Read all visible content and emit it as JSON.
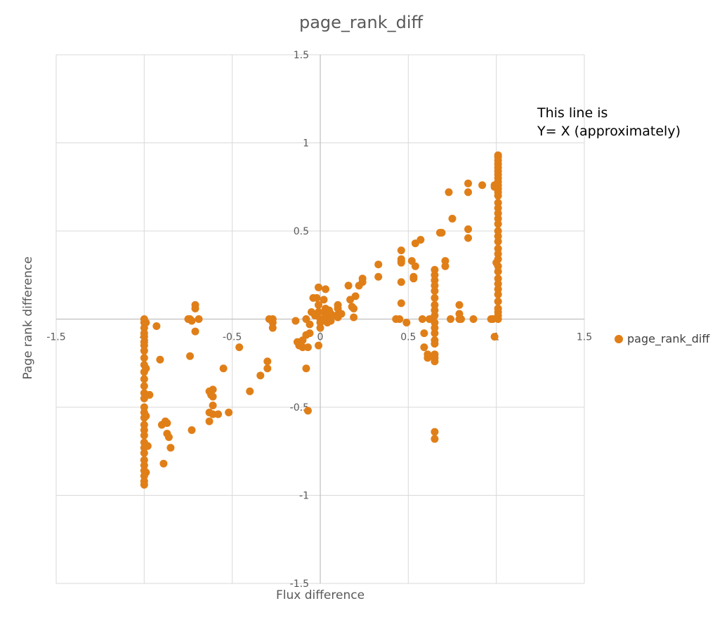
{
  "chart_data": {
    "type": "scatter",
    "title": "page_rank_diff",
    "xlabel": "Flux difference",
    "ylabel": "Page rank difference",
    "xlim": [
      -1.5,
      1.5
    ],
    "ylim": [
      -1.5,
      1.5
    ],
    "xticks": [
      -1.5,
      -1,
      -0.5,
      0,
      0.5,
      1,
      1.5
    ],
    "yticks": [
      -1.5,
      -1,
      -0.5,
      0,
      0.5,
      1,
      1.5
    ],
    "xtick_labels": [
      "-1.5",
      "-1",
      "-0.5",
      "0",
      "0.5",
      "1",
      "1.5"
    ],
    "ytick_labels": [
      "-1.5",
      "-1",
      "-0.5",
      "0",
      "0.5",
      "1",
      "1.5"
    ],
    "grid": true,
    "legend_position": "right",
    "annotation": [
      "This line is",
      "Y= X (approximately)"
    ],
    "series": [
      {
        "name": "page_rank_diff",
        "color": "#E07F18",
        "points": [
          [
            -1,
            0
          ],
          [
            -1,
            -0.02
          ],
          [
            -1,
            -0.05
          ],
          [
            -1,
            -0.08
          ],
          [
            -1,
            -0.1
          ],
          [
            -1,
            -0.13
          ],
          [
            -1,
            -0.15
          ],
          [
            -1,
            -0.18
          ],
          [
            -1,
            -0.22
          ],
          [
            -1,
            -0.26
          ],
          [
            -1,
            -0.3
          ],
          [
            -1,
            -0.34
          ],
          [
            -1,
            -0.38
          ],
          [
            -1,
            -0.42
          ],
          [
            -1,
            -0.45
          ],
          [
            -1,
            -0.5
          ],
          [
            -1,
            -0.53
          ],
          [
            -1,
            -0.56
          ],
          [
            -1,
            -0.6
          ],
          [
            -1,
            -0.63
          ],
          [
            -1,
            -0.66
          ],
          [
            -1,
            -0.7
          ],
          [
            -1,
            -0.73
          ],
          [
            -1,
            -0.76
          ],
          [
            -1,
            -0.8
          ],
          [
            -1,
            -0.83
          ],
          [
            -1,
            -0.86
          ],
          [
            -1,
            -0.89
          ],
          [
            -1,
            -0.92
          ],
          [
            -1,
            -0.94
          ],
          [
            -0.99,
            -0.02
          ],
          [
            -0.99,
            -0.28
          ],
          [
            -0.99,
            -0.55
          ],
          [
            -0.99,
            -0.87
          ],
          [
            -0.97,
            -0.43
          ],
          [
            -0.98,
            -0.72
          ],
          [
            -0.93,
            -0.04
          ],
          [
            -0.91,
            -0.23
          ],
          [
            -0.9,
            -0.6
          ],
          [
            -0.89,
            -0.82
          ],
          [
            -0.88,
            -0.58
          ],
          [
            -0.87,
            -0.59
          ],
          [
            -0.87,
            -0.65
          ],
          [
            -0.86,
            -0.67
          ],
          [
            -0.85,
            -0.73
          ],
          [
            -0.75,
            0
          ],
          [
            -0.74,
            0
          ],
          [
            -0.73,
            -0.01
          ],
          [
            -0.71,
            0.08
          ],
          [
            -0.71,
            0.06
          ],
          [
            -0.71,
            -0.07
          ],
          [
            -0.69,
            0
          ],
          [
            -0.74,
            -0.21
          ],
          [
            -0.73,
            -0.63
          ],
          [
            -0.63,
            -0.41
          ],
          [
            -0.62,
            -0.43
          ],
          [
            -0.61,
            -0.4
          ],
          [
            -0.61,
            -0.44
          ],
          [
            -0.61,
            -0.49
          ],
          [
            -0.61,
            -0.54
          ],
          [
            -0.63,
            -0.53
          ],
          [
            -0.63,
            -0.58
          ],
          [
            -0.58,
            -0.54
          ],
          [
            -0.55,
            -0.28
          ],
          [
            -0.52,
            -0.53
          ],
          [
            -0.46,
            -0.16
          ],
          [
            -0.4,
            -0.41
          ],
          [
            -0.34,
            -0.32
          ],
          [
            -0.3,
            -0.28
          ],
          [
            -0.3,
            -0.24
          ],
          [
            -0.29,
            0
          ],
          [
            -0.27,
            0
          ],
          [
            -0.27,
            -0.02
          ],
          [
            -0.27,
            -0.05
          ],
          [
            -0.14,
            -0.01
          ],
          [
            -0.13,
            -0.13
          ],
          [
            -0.12,
            -0.15
          ],
          [
            -0.1,
            -0.16
          ],
          [
            -0.1,
            -0.12
          ],
          [
            -0.08,
            -0.28
          ],
          [
            -0.08,
            -0.09
          ],
          [
            -0.08,
            0
          ],
          [
            -0.07,
            -0.52
          ],
          [
            -0.07,
            -0.16
          ],
          [
            -0.06,
            -0.03
          ],
          [
            -0.06,
            -0.08
          ],
          [
            -0.05,
            0.04
          ],
          [
            -0.04,
            0.12
          ],
          [
            -0.03,
            0.02
          ],
          [
            -0.02,
            0.12
          ],
          [
            -0.01,
            -0.15
          ],
          [
            -0.01,
            0.08
          ],
          [
            -0.01,
            0.04
          ],
          [
            -0.01,
            0.18
          ],
          [
            0,
            0
          ],
          [
            0,
            -0.02
          ],
          [
            0,
            -0.05
          ],
          [
            0.02,
            0.11
          ],
          [
            0.02,
            0.04
          ],
          [
            0.03,
            0.17
          ],
          [
            0.03,
            0.06
          ],
          [
            0.03,
            0.01
          ],
          [
            0.04,
            -0.02
          ],
          [
            0.05,
            0.05
          ],
          [
            0.06,
            0.03
          ],
          [
            0.06,
            -0.01
          ],
          [
            0.09,
            0.02
          ],
          [
            0.1,
            0.06
          ],
          [
            0.1,
            0.08
          ],
          [
            0.1,
            0.01
          ],
          [
            0.12,
            0.03
          ],
          [
            0.16,
            0.19
          ],
          [
            0.17,
            0.11
          ],
          [
            0.18,
            0.07
          ],
          [
            0.19,
            0.06
          ],
          [
            0.19,
            0.01
          ],
          [
            0.2,
            0.13
          ],
          [
            0.22,
            0.19
          ],
          [
            0.24,
            0.21
          ],
          [
            0.24,
            0.23
          ],
          [
            0.33,
            0.31
          ],
          [
            0.33,
            0.24
          ],
          [
            0.43,
            0
          ],
          [
            0.45,
            0
          ],
          [
            0.46,
            0.39
          ],
          [
            0.46,
            0.34
          ],
          [
            0.46,
            0.33
          ],
          [
            0.46,
            0.32
          ],
          [
            0.46,
            0.21
          ],
          [
            0.46,
            0.09
          ],
          [
            0.49,
            -0.02
          ],
          [
            0.52,
            0.33
          ],
          [
            0.53,
            0.24
          ],
          [
            0.53,
            0.23
          ],
          [
            0.54,
            0.3
          ],
          [
            0.54,
            0.43
          ],
          [
            0.57,
            0.45
          ],
          [
            0.58,
            0
          ],
          [
            0.59,
            -0.08
          ],
          [
            0.59,
            -0.16
          ],
          [
            0.62,
            0
          ],
          [
            0.65,
            0.28
          ],
          [
            0.65,
            0.25
          ],
          [
            0.65,
            0.22
          ],
          [
            0.65,
            0.19
          ],
          [
            0.65,
            0.16
          ],
          [
            0.65,
            0.12
          ],
          [
            0.65,
            0.08
          ],
          [
            0.65,
            0.05
          ],
          [
            0.65,
            0.02
          ],
          [
            0.65,
            -0.02
          ],
          [
            0.65,
            -0.05
          ],
          [
            0.65,
            -0.08
          ],
          [
            0.65,
            -0.12
          ],
          [
            0.65,
            -0.14
          ],
          [
            0.65,
            -0.2
          ],
          [
            0.65,
            -0.22
          ],
          [
            0.65,
            -0.24
          ],
          [
            0.65,
            -0.64
          ],
          [
            0.65,
            -0.68
          ],
          [
            0.61,
            -0.2
          ],
          [
            0.61,
            -0.22
          ],
          [
            0.68,
            0.49
          ],
          [
            0.69,
            0.49
          ],
          [
            0.71,
            0.3
          ],
          [
            0.71,
            0.33
          ],
          [
            0.73,
            0.72
          ],
          [
            0.74,
            0
          ],
          [
            0.75,
            0.57
          ],
          [
            0.79,
            0.08
          ],
          [
            0.79,
            0.03
          ],
          [
            0.79,
            0
          ],
          [
            0.8,
            0
          ],
          [
            0.84,
            0.77
          ],
          [
            0.84,
            0.72
          ],
          [
            0.84,
            0.51
          ],
          [
            0.84,
            0.46
          ],
          [
            0.87,
            0
          ],
          [
            0.92,
            0.76
          ],
          [
            0.97,
            0
          ],
          [
            0.98,
            0
          ],
          [
            0.99,
            0.76
          ],
          [
            0.99,
            0.75
          ],
          [
            0.99,
            -0.1
          ],
          [
            1,
            0.32
          ],
          [
            1.01,
            0.93
          ],
          [
            1.01,
            0.92
          ],
          [
            1.01,
            0.9
          ],
          [
            1.01,
            0.88
          ],
          [
            1.01,
            0.86
          ],
          [
            1.01,
            0.84
          ],
          [
            1.01,
            0.82
          ],
          [
            1.01,
            0.8
          ],
          [
            1.01,
            0.78
          ],
          [
            1.01,
            0.76
          ],
          [
            1.01,
            0.74
          ],
          [
            1.01,
            0.72
          ],
          [
            1.01,
            0.7
          ],
          [
            1.01,
            0.66
          ],
          [
            1.01,
            0.63
          ],
          [
            1.01,
            0.6
          ],
          [
            1.01,
            0.57
          ],
          [
            1.01,
            0.54
          ],
          [
            1.01,
            0.5
          ],
          [
            1.01,
            0.47
          ],
          [
            1.01,
            0.44
          ],
          [
            1.01,
            0.4
          ],
          [
            1.01,
            0.37
          ],
          [
            1.01,
            0.34
          ],
          [
            1.01,
            0.3
          ],
          [
            1.01,
            0.27
          ],
          [
            1.01,
            0.23
          ],
          [
            1.01,
            0.2
          ],
          [
            1.01,
            0.17
          ],
          [
            1.01,
            0.14
          ],
          [
            1.01,
            0.1
          ],
          [
            1.01,
            0.06
          ],
          [
            1.01,
            0.04
          ],
          [
            1.01,
            0.02
          ],
          [
            1.01,
            0
          ]
        ]
      }
    ]
  }
}
